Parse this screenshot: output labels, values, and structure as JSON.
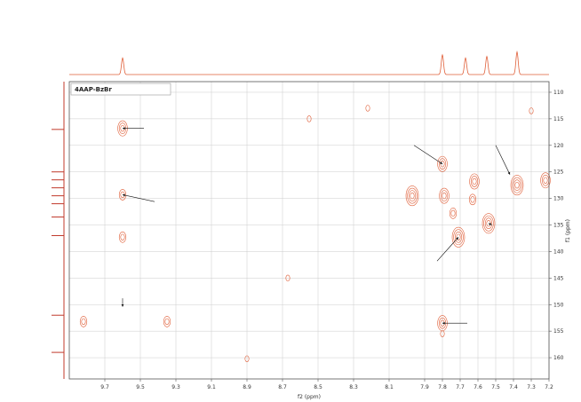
{
  "chart_data": {
    "type": "scatter",
    "title": "4AAP-BzBr",
    "xlabel": "f2 (ppm)",
    "ylabel": "f1 (ppm)",
    "xlim": [
      9.9,
      7.2
    ],
    "ylim": [
      108,
      164
    ],
    "x_ticks": [
      "9.7",
      "9.5",
      "9.3",
      "9.1",
      "8.9",
      "8.7",
      "8.5",
      "8.3",
      "8.1",
      "7.9",
      "7.8",
      "7.7",
      "7.6",
      "7.5",
      "7.4",
      "7.3",
      "7.2"
    ],
    "y_ticks": [
      "110",
      "115",
      "120",
      "125",
      "130",
      "135",
      "140",
      "145",
      "150",
      "155",
      "160"
    ],
    "colors": {
      "contour": "#e0603a",
      "trace": "#e0603a",
      "projection": "#c0392b",
      "grid": "#cccccc"
    },
    "top_trace_peaks": [
      {
        "x": 9.6,
        "h": 0.55,
        "label": ""
      },
      {
        "x": 7.8,
        "h": 0.65,
        "label": ""
      },
      {
        "x": 7.67,
        "h": 0.55,
        "label": ""
      },
      {
        "x": 7.55,
        "h": 0.6,
        "label": ""
      },
      {
        "x": 7.38,
        "h": 0.75,
        "label": ""
      }
    ],
    "left_projection_peaks": [
      {
        "y": 117,
        "label": ""
      },
      {
        "y": 125,
        "label": ""
      },
      {
        "y": 126.5,
        "label": ""
      },
      {
        "y": 128,
        "label": ""
      },
      {
        "y": 129.5,
        "label": ""
      },
      {
        "y": 131,
        "label": ""
      },
      {
        "y": 133.5,
        "label": ""
      },
      {
        "y": 137,
        "label": ""
      },
      {
        "y": 152,
        "label": ""
      },
      {
        "y": 159,
        "label": ""
      }
    ],
    "cross_peaks": [
      {
        "x": 9.6,
        "y": 116.8,
        "size": 3
      },
      {
        "x": 9.6,
        "y": 129.3,
        "size": 1.5
      },
      {
        "x": 9.6,
        "y": 137.3,
        "size": 2
      },
      {
        "x": 9.82,
        "y": 153.2,
        "size": 2
      },
      {
        "x": 9.35,
        "y": 153.2,
        "size": 2
      },
      {
        "x": 7.8,
        "y": 123.5,
        "size": 3
      },
      {
        "x": 7.97,
        "y": 129.5,
        "size": 3.5
      },
      {
        "x": 7.79,
        "y": 129.5,
        "size": 2.5
      },
      {
        "x": 7.74,
        "y": 132.8,
        "size": 1.5
      },
      {
        "x": 7.71,
        "y": 137.3,
        "size": 3.5
      },
      {
        "x": 7.62,
        "y": 126.8,
        "size": 3
      },
      {
        "x": 7.63,
        "y": 130.2,
        "size": 2
      },
      {
        "x": 7.54,
        "y": 134.7,
        "size": 4
      },
      {
        "x": 7.38,
        "y": 127.5,
        "size": 4
      },
      {
        "x": 7.22,
        "y": 126.6,
        "size": 2.5
      },
      {
        "x": 7.8,
        "y": 153.5,
        "size": 2.5
      },
      {
        "x": 7.8,
        "y": 155.5,
        "size": 1
      },
      {
        "x": 8.67,
        "y": 145.0,
        "size": 1
      },
      {
        "x": 8.9,
        "y": 160.2,
        "size": 1
      },
      {
        "x": 8.22,
        "y": 113.0,
        "size": 1
      },
      {
        "x": 8.55,
        "y": 115.0,
        "size": 1
      },
      {
        "x": 7.3,
        "y": 113.5,
        "size": 1
      }
    ],
    "annotations": [
      {
        "label": "",
        "x": 9.48,
        "y": 116.8,
        "ax": 9.6,
        "ay": 116.8
      },
      {
        "label": "",
        "x": 9.42,
        "y": 130.6,
        "ax": 9.6,
        "ay": 129.3
      },
      {
        "label": "",
        "x": 7.96,
        "y": 120.0,
        "ax": 7.8,
        "ay": 123.5
      },
      {
        "label": "",
        "x": 7.5,
        "y": 120.0,
        "ax": 7.42,
        "ay": 125.5
      },
      {
        "label": "",
        "x": 7.52,
        "y": 135.0,
        "ax": 7.54,
        "ay": 134.7
      },
      {
        "label": "",
        "x": 7.83,
        "y": 141.8,
        "ax": 7.71,
        "ay": 137.3
      },
      {
        "label": "",
        "x": 7.66,
        "y": 153.5,
        "ax": 7.8,
        "ay": 153.5
      },
      {
        "label": "",
        "x": 9.6,
        "y": 148.8,
        "ax": 9.6,
        "ay": 150.4
      }
    ],
    "legend": "top-left",
    "grid": true
  }
}
